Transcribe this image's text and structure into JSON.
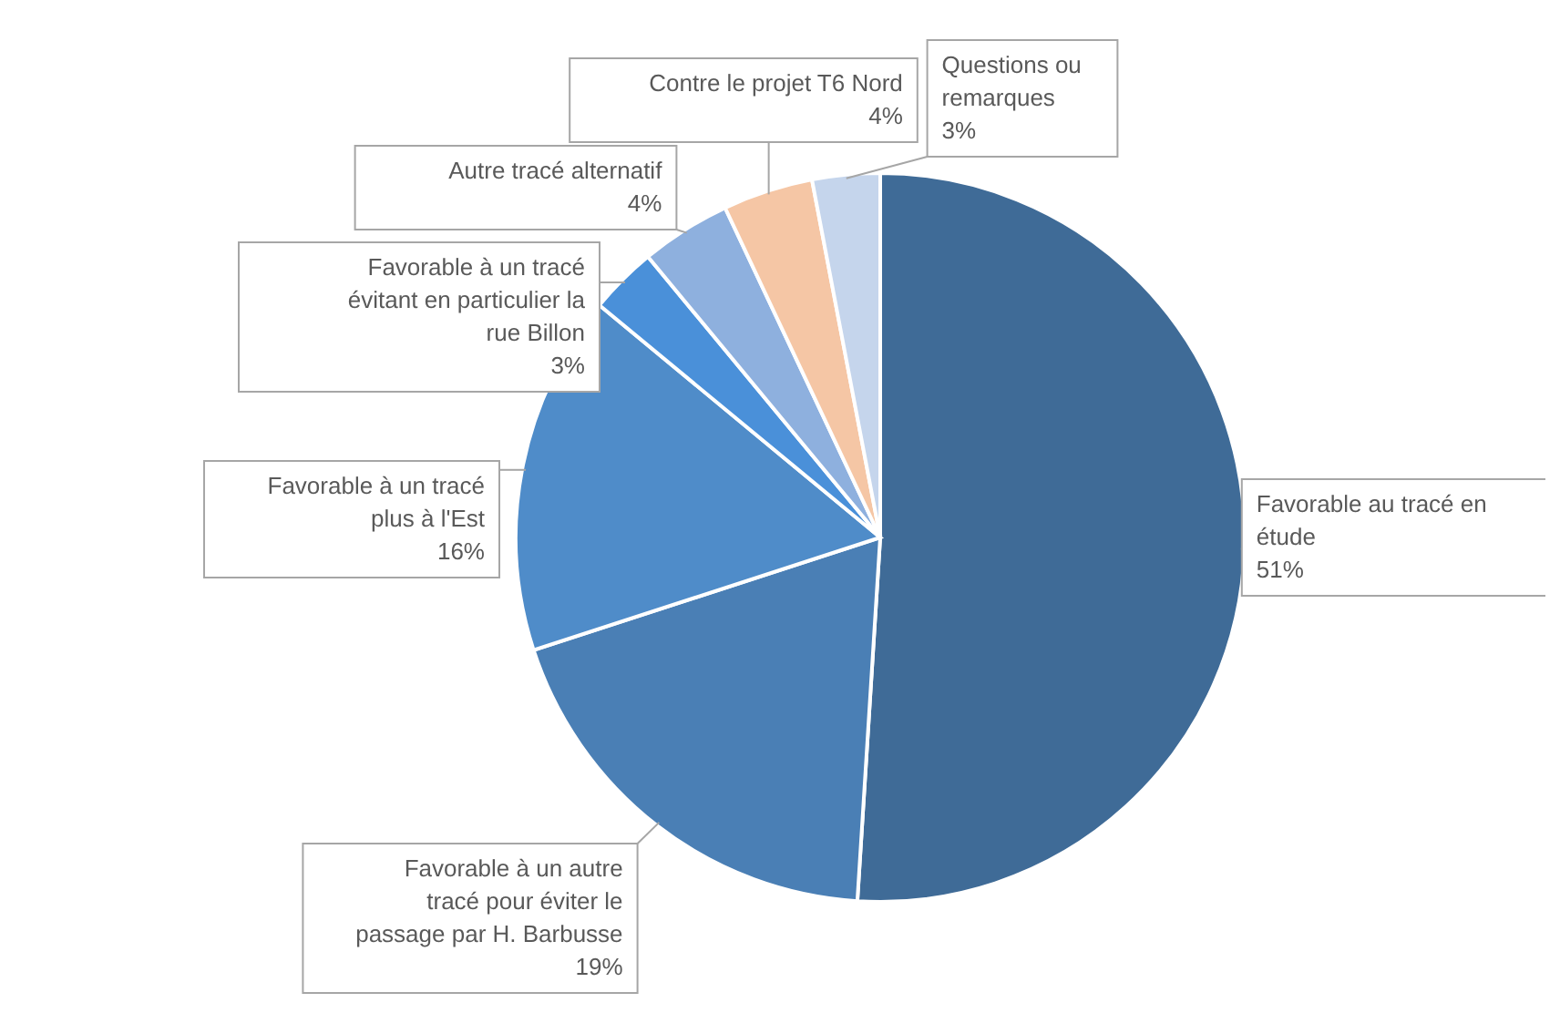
{
  "chart_data": {
    "type": "pie",
    "categories": [
      "Favorable au tracé en étude",
      "Favorable à un autre tracé pour éviter le passage par H. Barbusse",
      "Favorable à un tracé plus à l'Est",
      "Favorable à un tracé évitant en particulier la rue Billon",
      "Autre tracé alternatif",
      "Contre le projet T6 Nord",
      "Questions ou remarques"
    ],
    "values": [
      51,
      19,
      16,
      3,
      4,
      4,
      3
    ],
    "value_labels": [
      "51%",
      "19%",
      "16%",
      "3%",
      "4%",
      "4%",
      "3%"
    ],
    "colors": [
      "#3f6b97",
      "#4a7fb5",
      "#4f8cc9",
      "#4a90d9",
      "#8eb0de",
      "#f5c6a5",
      "#c5d5ec"
    ]
  }
}
